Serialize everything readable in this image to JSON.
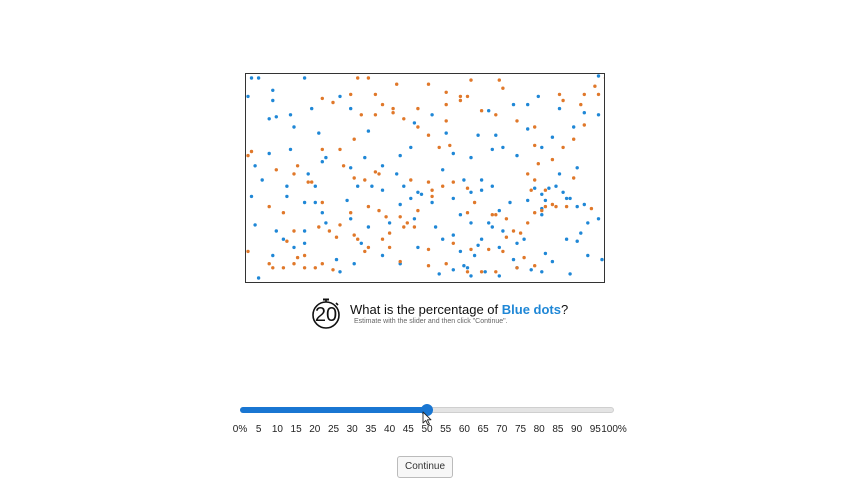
{
  "timer": {
    "value": "20"
  },
  "question": {
    "prefix": "What is the percentage of ",
    "highlight": "Blue dots",
    "suffix": "?",
    "instructions": "Estimate with the slider and then click \"Continue\"."
  },
  "slider": {
    "min": 0,
    "max": 100,
    "value": 50,
    "ticks": [
      "0%",
      "5",
      "10",
      "15",
      "20",
      "25",
      "30",
      "35",
      "40",
      "45",
      "50",
      "55",
      "60",
      "65",
      "70",
      "75",
      "80",
      "85",
      "90",
      "95",
      "100%"
    ]
  },
  "continue_label": "Continue",
  "colors": {
    "blue": "#1f87d6",
    "orange": "#e0782a",
    "accent": "#1976d2"
  },
  "chart_data": {
    "type": "scatter",
    "xlim": [
      0,
      100
    ],
    "ylim": [
      0,
      100
    ],
    "series": [
      {
        "color": "#1f87d6",
        "points": [
          [
            1,
            99
          ],
          [
            3,
            99
          ],
          [
            16,
            99
          ],
          [
            7,
            93
          ],
          [
            0,
            90
          ],
          [
            26,
            90
          ],
          [
            7,
            88
          ],
          [
            29,
            84
          ],
          [
            12,
            81
          ],
          [
            18,
            84
          ],
          [
            6,
            79
          ],
          [
            8,
            80
          ],
          [
            13,
            75
          ],
          [
            20,
            72
          ],
          [
            52,
            81
          ],
          [
            47,
            77
          ],
          [
            68,
            83
          ],
          [
            75,
            86
          ],
          [
            79,
            86
          ],
          [
            82,
            90
          ],
          [
            88,
            84
          ],
          [
            95,
            82
          ],
          [
            99,
            81
          ],
          [
            92,
            75
          ],
          [
            86,
            70
          ],
          [
            79,
            74
          ],
          [
            70,
            71
          ],
          [
            65,
            71
          ],
          [
            56,
            72
          ],
          [
            34,
            73
          ],
          [
            22,
            60
          ],
          [
            12,
            64
          ],
          [
            2,
            56
          ],
          [
            6,
            62
          ],
          [
            4,
            49
          ],
          [
            1,
            41
          ],
          [
            11,
            46
          ],
          [
            17,
            52
          ],
          [
            19,
            46
          ],
          [
            21,
            58
          ],
          [
            29,
            55
          ],
          [
            33,
            60
          ],
          [
            38,
            56
          ],
          [
            43,
            61
          ],
          [
            46,
            65
          ],
          [
            42,
            52
          ],
          [
            44,
            46
          ],
          [
            46,
            40
          ],
          [
            43,
            37
          ],
          [
            38,
            44
          ],
          [
            35,
            46
          ],
          [
            31,
            46
          ],
          [
            28,
            39
          ],
          [
            19,
            38
          ],
          [
            16,
            38
          ],
          [
            11,
            41
          ],
          [
            21,
            33
          ],
          [
            29,
            30
          ],
          [
            22,
            28
          ],
          [
            16,
            24
          ],
          [
            10,
            20
          ],
          [
            13,
            16
          ],
          [
            7,
            12
          ],
          [
            3,
            1
          ],
          [
            25,
            10
          ],
          [
            30,
            8
          ],
          [
            34,
            26
          ],
          [
            40,
            28
          ],
          [
            47,
            30
          ],
          [
            53,
            26
          ],
          [
            58,
            40
          ],
          [
            63,
            43
          ],
          [
            66,
            44
          ],
          [
            69,
            46
          ],
          [
            66,
            49
          ],
          [
            61,
            49
          ],
          [
            55,
            54
          ],
          [
            58,
            62
          ],
          [
            63,
            60
          ],
          [
            69,
            64
          ],
          [
            72,
            65
          ],
          [
            76,
            61
          ],
          [
            83,
            65
          ],
          [
            88,
            52
          ],
          [
            93,
            55
          ],
          [
            81,
            45
          ],
          [
            85,
            45
          ],
          [
            89,
            43
          ],
          [
            91,
            40
          ],
          [
            95,
            37
          ],
          [
            99,
            30
          ],
          [
            83,
            35
          ],
          [
            84,
            39
          ],
          [
            79,
            39
          ],
          [
            74,
            38
          ],
          [
            71,
            34
          ],
          [
            68,
            28
          ],
          [
            63,
            28
          ],
          [
            60,
            32
          ],
          [
            52,
            38
          ],
          [
            49,
            42
          ],
          [
            48,
            43
          ],
          [
            55,
            20
          ],
          [
            58,
            22
          ],
          [
            60,
            14
          ],
          [
            61,
            7
          ],
          [
            63,
            2
          ],
          [
            58,
            5
          ],
          [
            54,
            3
          ],
          [
            48,
            16
          ],
          [
            43,
            8
          ],
          [
            38,
            12
          ],
          [
            32,
            18
          ],
          [
            26,
            4
          ],
          [
            16,
            18
          ],
          [
            2,
            27
          ],
          [
            8,
            24
          ],
          [
            64,
            12
          ],
          [
            71,
            16
          ],
          [
            75,
            10
          ],
          [
            80,
            5
          ],
          [
            84,
            13
          ],
          [
            90,
            20
          ],
          [
            93,
            19
          ],
          [
            94,
            23
          ],
          [
            96,
            28
          ],
          [
            93,
            36
          ],
          [
            90,
            40
          ],
          [
            87,
            46
          ],
          [
            83,
            42
          ],
          [
            83,
            32
          ],
          [
            78,
            20
          ],
          [
            76,
            18
          ],
          [
            72,
            24
          ],
          [
            69,
            26
          ],
          [
            66,
            20
          ],
          [
            65,
            17
          ],
          [
            62,
            6
          ],
          [
            67,
            4
          ],
          [
            71,
            2
          ],
          [
            76,
            6
          ],
          [
            83,
            4
          ],
          [
            86,
            9
          ],
          [
            91,
            3
          ],
          [
            96,
            12
          ],
          [
            100,
            10
          ],
          [
            99,
            100
          ]
        ]
      },
      {
        "color": "#e0782a",
        "points": [
          [
            34,
            99
          ],
          [
            42,
            96
          ],
          [
            51,
            96
          ],
          [
            56,
            92
          ],
          [
            63,
            98
          ],
          [
            71,
            98
          ],
          [
            72,
            94
          ],
          [
            62,
            90
          ],
          [
            60,
            90
          ],
          [
            56,
            86
          ],
          [
            48,
            84
          ],
          [
            44,
            79
          ],
          [
            41,
            84
          ],
          [
            36,
            81
          ],
          [
            32,
            81
          ],
          [
            29,
            91
          ],
          [
            24,
            87
          ],
          [
            21,
            89
          ],
          [
            30,
            69
          ],
          [
            26,
            64
          ],
          [
            21,
            64
          ],
          [
            27,
            56
          ],
          [
            33,
            49
          ],
          [
            30,
            50
          ],
          [
            37,
            52
          ],
          [
            36,
            53
          ],
          [
            46,
            49
          ],
          [
            51,
            48
          ],
          [
            52,
            44
          ],
          [
            55,
            46
          ],
          [
            58,
            48
          ],
          [
            62,
            45
          ],
          [
            48,
            34
          ],
          [
            43,
            31
          ],
          [
            44,
            26
          ],
          [
            40,
            23
          ],
          [
            38,
            20
          ],
          [
            34,
            16
          ],
          [
            31,
            20
          ],
          [
            30,
            22
          ],
          [
            26,
            27
          ],
          [
            25,
            21
          ],
          [
            23,
            24
          ],
          [
            20,
            26
          ],
          [
            21,
            38
          ],
          [
            17,
            48
          ],
          [
            18,
            48
          ],
          [
            13,
            52
          ],
          [
            14,
            56
          ],
          [
            1,
            63
          ],
          [
            0,
            61
          ],
          [
            8,
            54
          ],
          [
            6,
            36
          ],
          [
            10,
            33
          ],
          [
            13,
            24
          ],
          [
            11,
            19
          ],
          [
            16,
            12
          ],
          [
            16,
            6
          ],
          [
            13,
            8
          ],
          [
            10,
            6
          ],
          [
            7,
            6
          ],
          [
            6,
            8
          ],
          [
            29,
            33
          ],
          [
            34,
            36
          ],
          [
            37,
            34
          ],
          [
            39,
            31
          ],
          [
            45,
            28
          ],
          [
            47,
            26
          ],
          [
            51,
            15
          ],
          [
            58,
            18
          ],
          [
            63,
            15
          ],
          [
            68,
            15
          ],
          [
            72,
            14
          ],
          [
            73,
            21
          ],
          [
            75,
            24
          ],
          [
            77,
            23
          ],
          [
            81,
            33
          ],
          [
            83,
            34
          ],
          [
            84,
            36
          ],
          [
            86,
            37
          ],
          [
            84,
            44
          ],
          [
            81,
            49
          ],
          [
            79,
            52
          ],
          [
            82,
            57
          ],
          [
            86,
            59
          ],
          [
            81,
            66
          ],
          [
            81,
            75
          ],
          [
            76,
            78
          ],
          [
            70,
            81
          ],
          [
            66,
            83
          ],
          [
            60,
            88
          ],
          [
            56,
            78
          ],
          [
            48,
            75
          ],
          [
            51,
            71
          ],
          [
            54,
            65
          ],
          [
            57,
            66
          ],
          [
            41,
            82
          ],
          [
            38,
            86
          ],
          [
            36,
            91
          ],
          [
            31,
            99
          ],
          [
            88,
            91
          ],
          [
            89,
            88
          ],
          [
            94,
            86
          ],
          [
            95,
            91
          ],
          [
            98,
            95
          ],
          [
            101,
            99
          ],
          [
            99,
            91
          ],
          [
            95,
            76
          ],
          [
            92,
            69
          ],
          [
            89,
            65
          ],
          [
            92,
            50
          ],
          [
            97,
            35
          ],
          [
            90,
            36
          ],
          [
            87,
            36
          ],
          [
            80,
            44
          ],
          [
            79,
            28
          ],
          [
            73,
            30
          ],
          [
            70,
            32
          ],
          [
            69,
            32
          ],
          [
            64,
            38
          ],
          [
            62,
            33
          ],
          [
            52,
            41
          ],
          [
            78,
            11
          ],
          [
            81,
            7
          ],
          [
            76,
            6
          ],
          [
            70,
            4
          ],
          [
            66,
            4
          ],
          [
            62,
            4
          ],
          [
            56,
            8
          ],
          [
            51,
            7
          ],
          [
            43,
            9
          ],
          [
            40,
            16
          ],
          [
            33,
            14
          ],
          [
            21,
            8
          ],
          [
            24,
            5
          ],
          [
            19,
            6
          ],
          [
            14,
            11
          ],
          [
            0,
            14
          ]
        ]
      }
    ]
  }
}
